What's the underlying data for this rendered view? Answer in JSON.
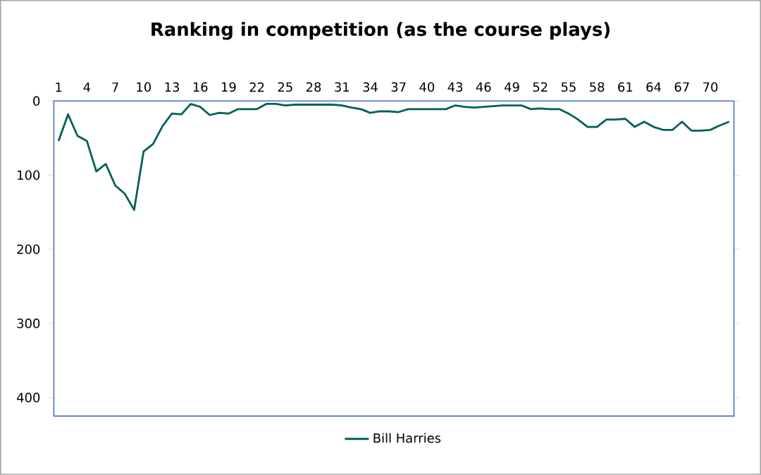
{
  "chart_data": {
    "type": "line",
    "title": "Ranking in competition (as the course plays)",
    "categories": [
      "1",
      null,
      null,
      "4",
      null,
      null,
      "7",
      null,
      null,
      "10",
      null,
      null,
      "13",
      null,
      null,
      "16",
      null,
      null,
      "19",
      null,
      null,
      "22",
      null,
      null,
      "25",
      null,
      null,
      "28",
      null,
      null,
      "31",
      null,
      null,
      "34",
      null,
      null,
      "37",
      null,
      null,
      "40",
      null,
      null,
      "43",
      null,
      null,
      "46",
      null,
      null,
      "49",
      null,
      null,
      "52",
      null,
      null,
      "55",
      null,
      null,
      "58",
      null,
      null,
      "61",
      null,
      null,
      "64",
      null,
      null,
      "67",
      null,
      null,
      "70",
      null,
      null
    ],
    "series": [
      {
        "name": "Bill Harries",
        "color": "#006058",
        "values": [
          54,
          18,
          47,
          54,
          95,
          85,
          114,
          125,
          147,
          68,
          58,
          34,
          17,
          18,
          4,
          8,
          19,
          16,
          17,
          11,
          11,
          11,
          4,
          4,
          6,
          5,
          5,
          5,
          5,
          5,
          6,
          9,
          11,
          16,
          14,
          14,
          15,
          11,
          11,
          11,
          11,
          11,
          6,
          8,
          9,
          8,
          7,
          6,
          6,
          6,
          11,
          10,
          11,
          11,
          17,
          25,
          35,
          35,
          25,
          25,
          24,
          35,
          28,
          35,
          39,
          39,
          28,
          40,
          40,
          39,
          33,
          28
        ]
      }
    ],
    "ylim": [
      425,
      0
    ],
    "yticks": [
      0,
      100,
      200,
      300,
      400
    ],
    "legend": "bottom"
  }
}
